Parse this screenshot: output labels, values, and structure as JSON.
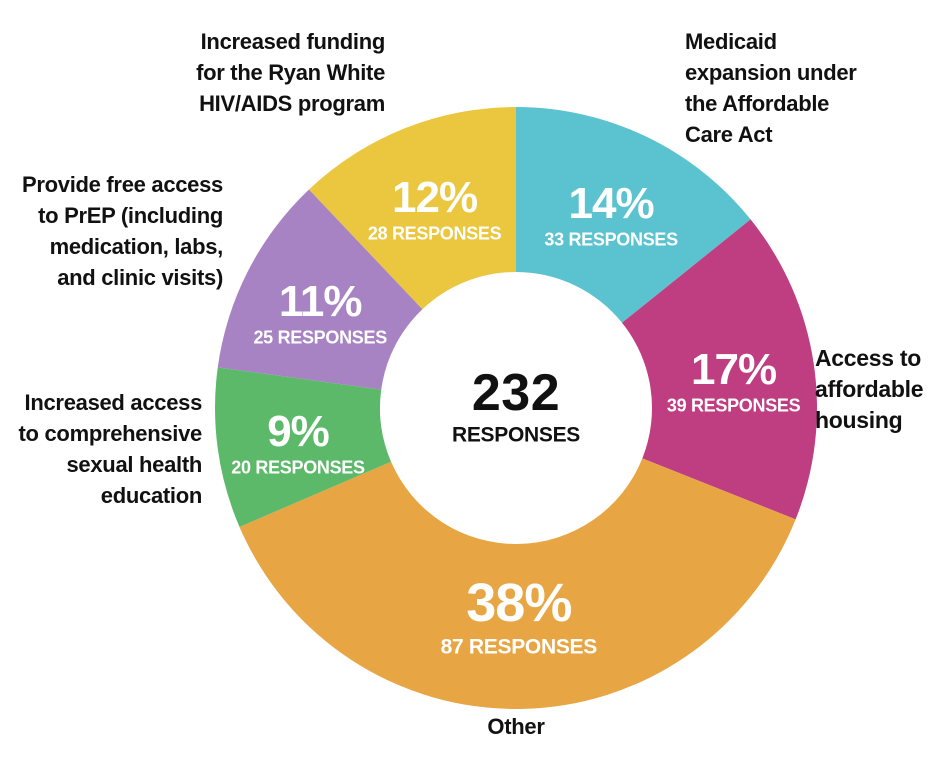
{
  "page": {
    "background_color": "#ffffff",
    "text_color": "#111111"
  },
  "chart_data": {
    "type": "pie",
    "variant": "donut",
    "title": "",
    "center": {
      "value": "232",
      "label": "RESPONSES"
    },
    "total_responses": 232,
    "layout": {
      "start_angle_deg": 0,
      "direction": "clockwise",
      "donut_hole_ratio": 0.45,
      "legend": "outside-callout-labels",
      "grid": "off"
    },
    "slices": [
      {
        "name": "medicaid-expansion",
        "label": "Medicaid\nexpansion under\nthe Affordable\nCare Act",
        "percent": 14,
        "percent_label": "14%",
        "value": 33,
        "responses_label": "33 RESPONSES",
        "color": "#5bc3cf"
      },
      {
        "name": "affordable-housing",
        "label": "Access to\naffordable\nhousing",
        "percent": 17,
        "percent_label": "17%",
        "value": 39,
        "responses_label": "39 RESPONSES",
        "color": "#bf3e81"
      },
      {
        "name": "other",
        "label": "Other",
        "percent": 38,
        "percent_label": "38%",
        "value": 87,
        "responses_label": "87 RESPONSES",
        "color": "#e7a643"
      },
      {
        "name": "sexual-health-education",
        "label": "Increased access\nto comprehensive\nsexual health\neducation",
        "percent": 9,
        "percent_label": "9%",
        "value": 20,
        "responses_label": "20 RESPONSES",
        "color": "#5cb96a"
      },
      {
        "name": "prep-access",
        "label": "Provide free access\nto PrEP (including\nmedication, labs,\nand clinic visits)",
        "percent": 11,
        "percent_label": "11%",
        "value": 25,
        "responses_label": "25 RESPONSES",
        "color": "#a783c4"
      },
      {
        "name": "ryan-white-funding",
        "label": "Increased funding\nfor the Ryan White\nHIV/AIDS program",
        "percent": 12,
        "percent_label": "12%",
        "value": 28,
        "responses_label": "28 RESPONSES",
        "color": "#eac73f"
      }
    ]
  }
}
